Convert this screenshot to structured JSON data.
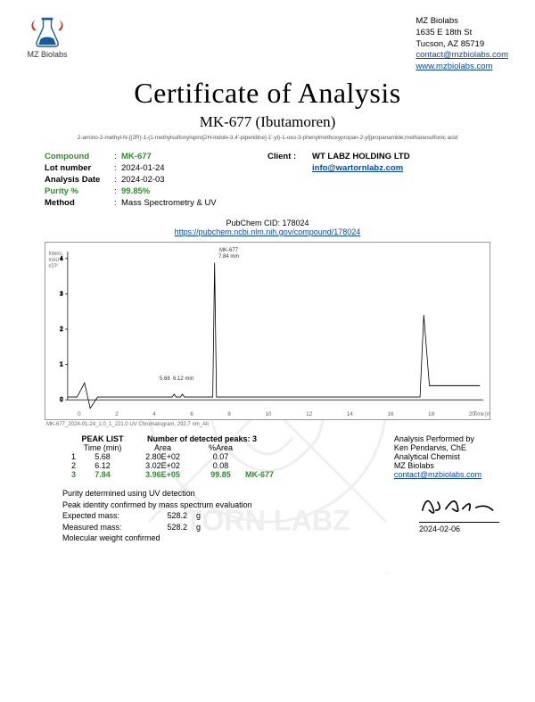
{
  "company": {
    "name": "MZ Biolabs",
    "addr1": "1635 E 18th St",
    "addr2": "Tucson, AZ 85719",
    "email": "contact@mzbiolabs.com",
    "web": "www.mzbiolabs.com"
  },
  "title": "Certificate of Analysis",
  "subtitle": "MK-677 (Ibutamoren)",
  "chemname": "2-amino-2-methyl-N-[(2R)-1-(1-methylsulfonylspiro[2H-indole-3,4'-piperidine]-1'-yl)-1-oxo-3-phenylmethoxypropan-2-yl]propanamide;methanesulfonic acid",
  "info": {
    "compound_label": "Compound",
    "compound_value": "MK-677",
    "lot_label": "Lot number",
    "lot_value": "2024-01-24",
    "date_label": "Analysis Date",
    "date_value": "2024-02-03",
    "purity_label": "Purity %",
    "purity_value": "99.85%",
    "method_label": "Method",
    "method_value": "Mass Spectrometry & UV",
    "client_label": "Client :",
    "client_value": "WT LABZ HOLDING LTD",
    "client_email": "info@wartornlabz.com"
  },
  "pubchem": {
    "label": "PubChem CID: 178024",
    "link": "https://pubchem.ncbi.nlm.nih.gov/compound/178024"
  },
  "chart": {
    "ymax": 4,
    "xrange": [
      0,
      22
    ],
    "peaks": [
      {
        "x": 5.68,
        "h": 0.04,
        "label": "5.68 min"
      },
      {
        "x": 6.12,
        "h": 0.04,
        "label": ""
      },
      {
        "x": 7.84,
        "h": 0.97,
        "label": "MK-677\n7.84 min"
      }
    ],
    "step_x": 19,
    "step_h": 0.6,
    "colors": {
      "line": "#000",
      "grid": "#ddd",
      "border": "#999"
    },
    "ylabel_hint": "Intens.\nmAU\nx10^5"
  },
  "peak_table": {
    "heading": "PEAK LIST",
    "count_label": "Number of detected peaks: 3",
    "cols": [
      "Time (min)",
      "Area",
      "%Area"
    ],
    "rows": [
      [
        "1",
        "5.68",
        "2.80E+02",
        "0.07",
        ""
      ],
      [
        "2",
        "6.12",
        "3.02E+02",
        "0.08",
        ""
      ],
      [
        "3",
        "7.84",
        "3.96E+05",
        "99.85",
        "MK-677"
      ]
    ],
    "highlight_row": 2
  },
  "analysis_by": {
    "l1": "Analysis Performed by",
    "l2": "Ken Pendarvis, ChE",
    "l3": "Analytical Chemist",
    "l4": "MZ Biolabs",
    "email": "contact@mzbiolabs.com"
  },
  "notes": {
    "n1": "Purity determined using UV detection",
    "n2": "Peak identity confirmed by mass spectrum evaluation",
    "exp_label": "Expected mass:",
    "exp_val": "528.2",
    "meas_label": "Measured mass:",
    "meas_val": "528.2",
    "unit": "g",
    "n3": "Molecular weight confirmed"
  },
  "sign_date": "2024-02-06",
  "watermark_text": "WAR",
  "watermark_text2": "TORN LABZ"
}
